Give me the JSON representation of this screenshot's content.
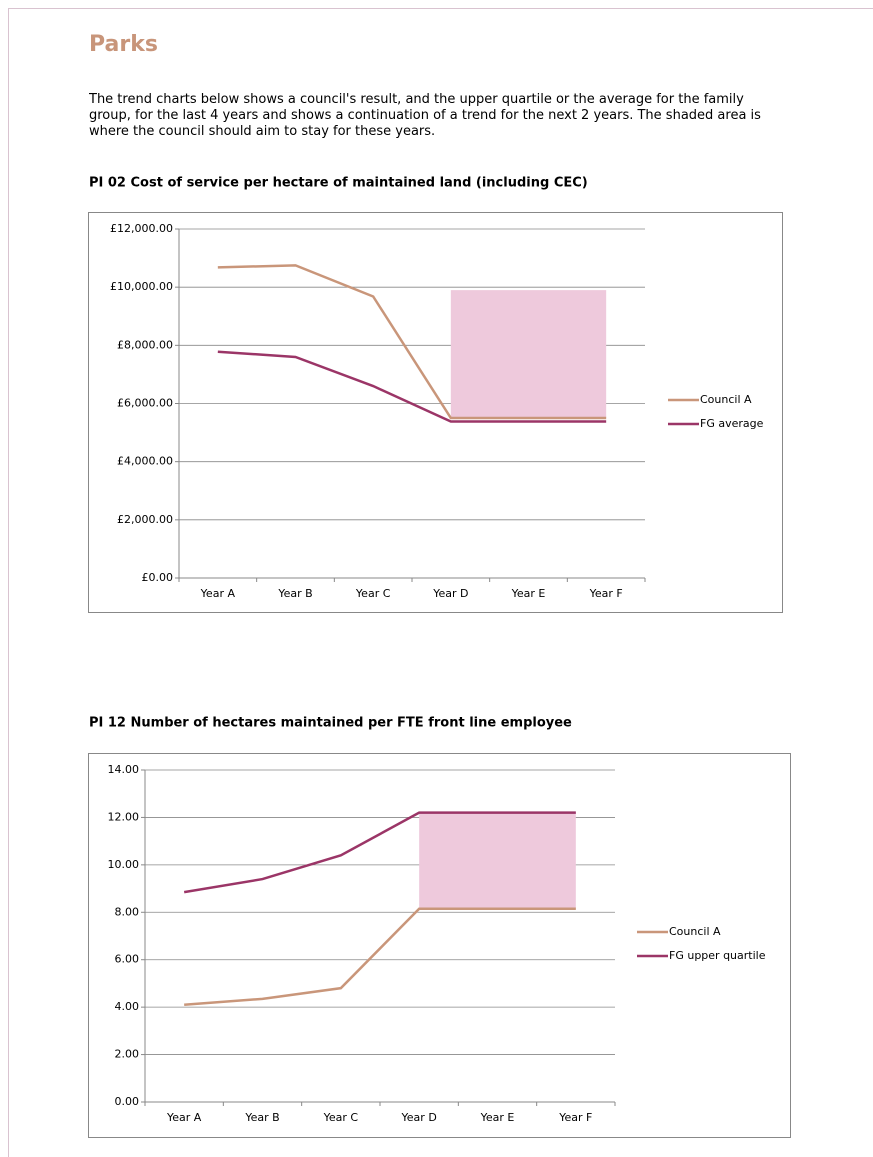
{
  "title": "Parks",
  "intro": "The trend charts below shows a council's result, and the upper quartile or the average for the family group, for the last 4 years and shows a continuation of a trend for the next 2 years. The shaded area is where the council should aim to stay for these years.",
  "chart_data": [
    {
      "type": "line",
      "title": "PI 02 Cost of service per hectare of maintained land (including CEC)",
      "categories": [
        "Year A",
        "Year B",
        "Year C",
        "Year D",
        "Year E",
        "Year F"
      ],
      "series": [
        {
          "name": "Council A",
          "color": "#c9967a",
          "values": [
            10680,
            10750,
            9680,
            5500,
            5500,
            5500
          ]
        },
        {
          "name": "FG average",
          "color": "#9b3567",
          "values": [
            7780,
            7600,
            6600,
            5380,
            5380,
            5380
          ]
        }
      ],
      "shade": {
        "color": "#eec9dc",
        "low": [
          null,
          null,
          null,
          5500,
          5500,
          5500
        ],
        "high": [
          null,
          null,
          null,
          9900,
          9900,
          9900
        ]
      },
      "ylim": [
        0,
        12000
      ],
      "yticks": [
        {
          "value": 0,
          "label": "£0.00"
        },
        {
          "value": 2000,
          "label": "£2,000.00"
        },
        {
          "value": 4000,
          "label": "£4,000.00"
        },
        {
          "value": 6000,
          "label": "£6,000.00"
        },
        {
          "value": 8000,
          "label": "£8,000.00"
        },
        {
          "value": 10000,
          "label": "£10,000.00"
        },
        {
          "value": 12000,
          "label": "£12,000.00"
        }
      ],
      "grid": true,
      "legend": "right"
    },
    {
      "type": "line",
      "title": "PI 12 Number of hectares maintained per FTE front line employee",
      "categories": [
        "Year A",
        "Year B",
        "Year C",
        "Year D",
        "Year E",
        "Year F"
      ],
      "series": [
        {
          "name": "Council A",
          "color": "#c9967a",
          "values": [
            4.1,
            4.35,
            4.8,
            8.15,
            8.15,
            8.15
          ]
        },
        {
          "name": "FG upper quartile",
          "color": "#9b3567",
          "values": [
            8.85,
            9.4,
            10.4,
            12.2,
            12.2,
            12.2
          ]
        }
      ],
      "shade": {
        "color": "#eec9dc",
        "low": [
          null,
          null,
          null,
          8.15,
          8.15,
          8.15
        ],
        "high": [
          null,
          null,
          null,
          12.2,
          12.2,
          12.2
        ]
      },
      "ylim": [
        0,
        14
      ],
      "yticks": [
        {
          "value": 0,
          "label": "0.00"
        },
        {
          "value": 2,
          "label": "2.00"
        },
        {
          "value": 4,
          "label": "4.00"
        },
        {
          "value": 6,
          "label": "6.00"
        },
        {
          "value": 8,
          "label": "8.00"
        },
        {
          "value": 10,
          "label": "10.00"
        },
        {
          "value": 12,
          "label": "12.00"
        },
        {
          "value": 14,
          "label": "14.00"
        }
      ],
      "grid": true,
      "legend": "right"
    }
  ]
}
